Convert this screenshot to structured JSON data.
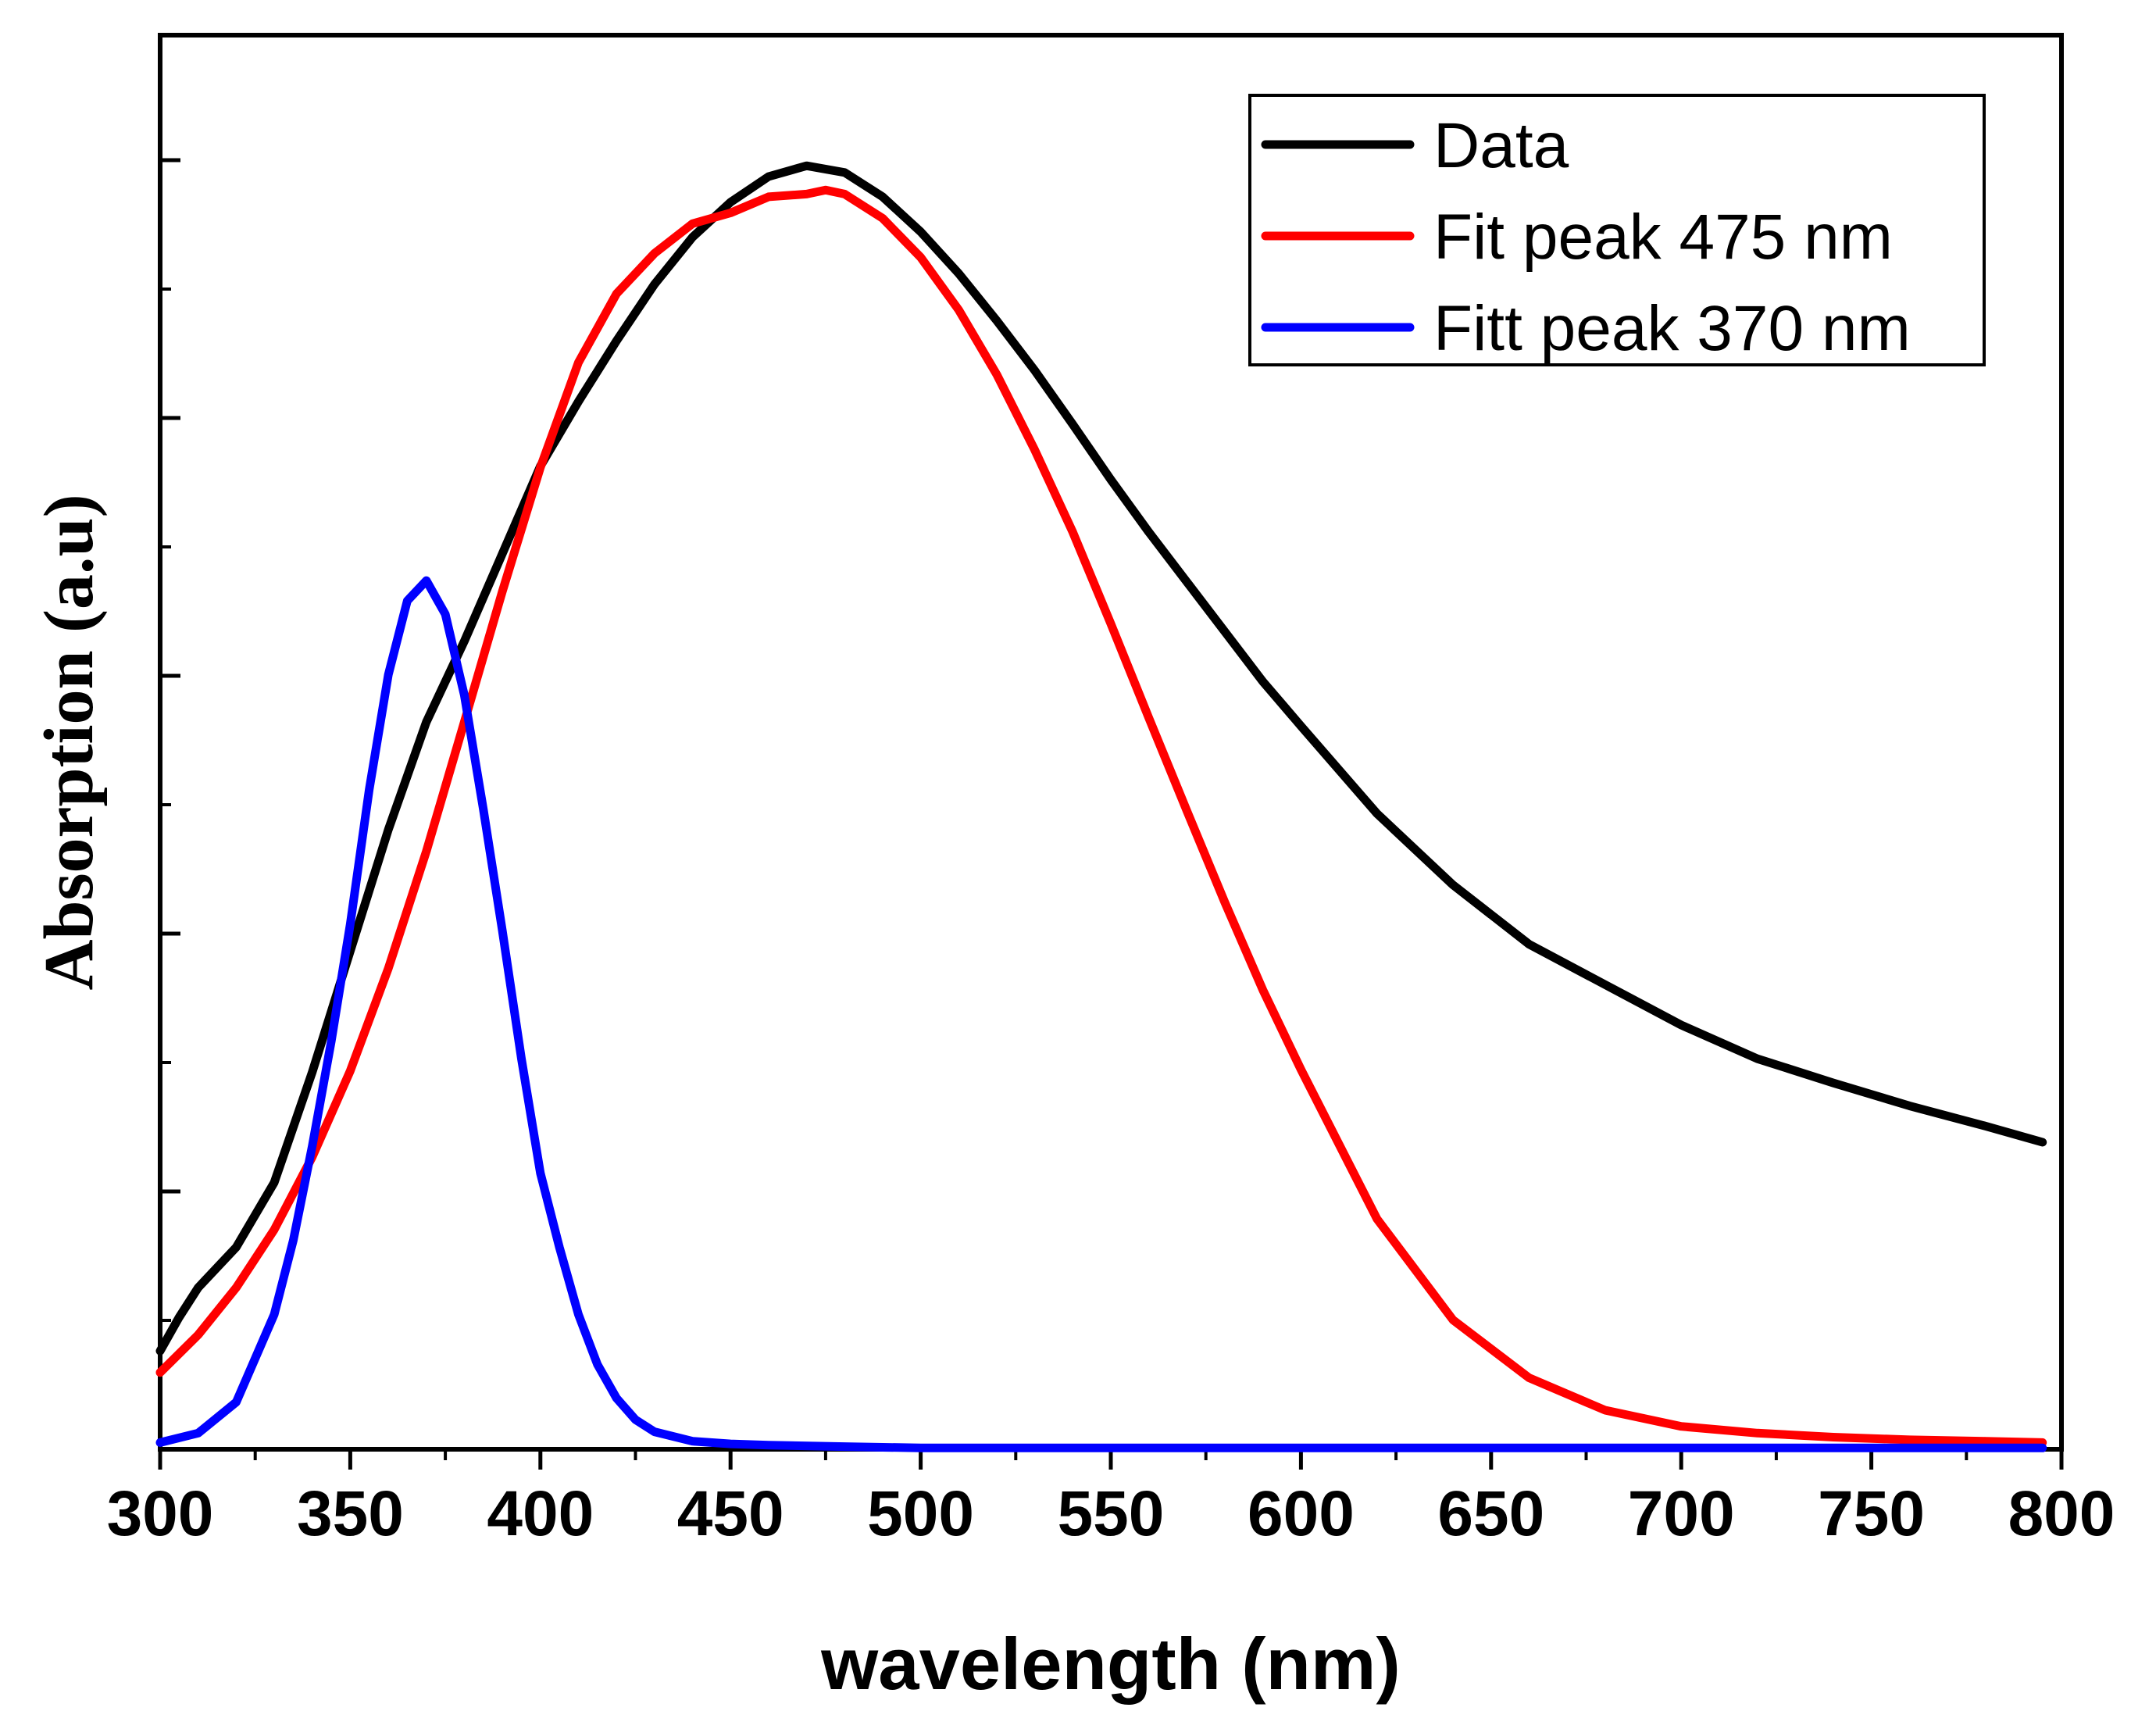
{
  "chart_data": {
    "type": "line",
    "title": "",
    "xlabel": "wavelength (nm)",
    "ylabel": "Absorption (a.u)",
    "xlim": [
      300,
      800
    ],
    "ylim": [
      0,
      1.05
    ],
    "x_ticks": [
      300,
      350,
      400,
      450,
      500,
      550,
      600,
      650,
      700,
      750,
      800
    ],
    "x_tick_labels": [
      "300",
      "350",
      "400",
      "450",
      "500",
      "550",
      "600",
      "650",
      "700",
      "750",
      "800"
    ],
    "y_tick_labels_visible": false,
    "legend_position": "top-right",
    "grid": false,
    "series": [
      {
        "name": "Data",
        "color": "#000000",
        "x": [
          300,
          305,
          310,
          320,
          330,
          340,
          350,
          360,
          370,
          380,
          390,
          400,
          410,
          420,
          430,
          440,
          450,
          460,
          470,
          480,
          490,
          500,
          510,
          520,
          530,
          540,
          550,
          560,
          570,
          580,
          590,
          600,
          620,
          640,
          660,
          680,
          700,
          720,
          740,
          760,
          780,
          795
        ],
        "values": [
          0.073,
          0.098,
          0.12,
          0.15,
          0.198,
          0.28,
          0.37,
          0.46,
          0.54,
          0.6,
          0.665,
          0.73,
          0.778,
          0.823,
          0.865,
          0.9,
          0.926,
          0.945,
          0.953,
          0.948,
          0.93,
          0.904,
          0.873,
          0.838,
          0.801,
          0.761,
          0.72,
          0.681,
          0.644,
          0.607,
          0.57,
          0.537,
          0.472,
          0.419,
          0.375,
          0.345,
          0.315,
          0.29,
          0.272,
          0.255,
          0.24,
          0.228
        ]
      },
      {
        "name": "Fit peak 475 nm",
        "color": "#ff0000",
        "x": [
          300,
          310,
          320,
          330,
          340,
          350,
          360,
          370,
          380,
          390,
          400,
          410,
          420,
          430,
          440,
          450,
          460,
          470,
          475,
          480,
          490,
          500,
          510,
          520,
          530,
          540,
          550,
          560,
          570,
          580,
          590,
          600,
          620,
          640,
          660,
          680,
          700,
          720,
          740,
          760,
          780,
          795
        ],
        "values": [
          0.057,
          0.085,
          0.12,
          0.163,
          0.217,
          0.281,
          0.357,
          0.444,
          0.54,
          0.637,
          0.729,
          0.807,
          0.858,
          0.888,
          0.91,
          0.918,
          0.93,
          0.932,
          0.935,
          0.932,
          0.914,
          0.885,
          0.846,
          0.798,
          0.742,
          0.681,
          0.613,
          0.543,
          0.474,
          0.406,
          0.341,
          0.282,
          0.171,
          0.096,
          0.053,
          0.029,
          0.017,
          0.012,
          0.009,
          0.007,
          0.006,
          0.005
        ]
      },
      {
        "name": "Fitt peak 370 nm",
        "color": "#0000ff",
        "x": [
          300,
          310,
          320,
          330,
          335,
          340,
          345,
          350,
          355,
          360,
          365,
          370,
          375,
          380,
          385,
          390,
          395,
          400,
          405,
          410,
          415,
          420,
          425,
          430,
          440,
          450,
          460,
          480,
          500,
          550,
          600,
          650,
          700,
          750,
          795
        ],
        "values": [
          0.005,
          0.012,
          0.035,
          0.1,
          0.155,
          0.225,
          0.303,
          0.39,
          0.49,
          0.575,
          0.63,
          0.645,
          0.62,
          0.56,
          0.475,
          0.385,
          0.29,
          0.205,
          0.15,
          0.1,
          0.063,
          0.038,
          0.022,
          0.013,
          0.006,
          0.004,
          0.003,
          0.002,
          0.001,
          0.001,
          0.001,
          0.001,
          0.001,
          0.001,
          0.001
        ]
      }
    ]
  }
}
